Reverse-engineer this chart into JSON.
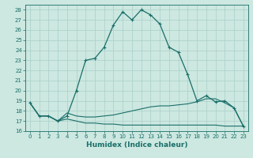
{
  "xlabel": "Humidex (Indice chaleur)",
  "bg_color": "#cce8e0",
  "grid_color": "#aacfc8",
  "line_color": "#1a6e6a",
  "xlim": [
    -0.5,
    23.5
  ],
  "ylim": [
    16,
    28.5
  ],
  "xticks": [
    0,
    1,
    2,
    3,
    4,
    5,
    6,
    7,
    8,
    9,
    10,
    11,
    12,
    13,
    14,
    15,
    16,
    17,
    18,
    19,
    20,
    21,
    22,
    23
  ],
  "yticks": [
    16,
    17,
    18,
    19,
    20,
    21,
    22,
    23,
    24,
    25,
    26,
    27,
    28
  ],
  "line1_x": [
    0,
    1,
    2,
    3,
    4,
    5,
    6,
    7,
    8,
    9,
    10,
    11,
    12,
    13,
    14,
    15,
    16,
    17,
    18,
    19,
    20,
    21,
    22,
    23
  ],
  "line1_y": [
    18.8,
    17.5,
    17.5,
    17.0,
    17.5,
    20.0,
    23.0,
    23.2,
    24.3,
    26.5,
    27.8,
    27.0,
    28.0,
    27.5,
    26.6,
    24.3,
    23.8,
    21.6,
    19.0,
    19.5,
    18.9,
    19.0,
    18.3,
    16.5
  ],
  "line2_x": [
    0,
    1,
    2,
    3,
    4,
    5,
    6,
    7,
    8,
    9,
    10,
    11,
    12,
    13,
    14,
    15,
    16,
    17,
    18,
    19,
    20,
    21,
    22,
    23
  ],
  "line2_y": [
    18.8,
    17.5,
    17.5,
    17.0,
    17.8,
    17.5,
    17.4,
    17.4,
    17.5,
    17.6,
    17.8,
    18.0,
    18.2,
    18.4,
    18.5,
    18.5,
    18.6,
    18.7,
    18.9,
    19.2,
    19.2,
    18.8,
    18.3,
    16.5
  ],
  "line3_x": [
    0,
    1,
    2,
    3,
    4,
    5,
    6,
    7,
    8,
    9,
    10,
    11,
    12,
    13,
    14,
    15,
    16,
    17,
    18,
    19,
    20,
    21,
    22,
    23
  ],
  "line3_y": [
    18.8,
    17.5,
    17.5,
    17.0,
    17.2,
    17.0,
    16.8,
    16.8,
    16.7,
    16.7,
    16.6,
    16.6,
    16.6,
    16.6,
    16.6,
    16.6,
    16.6,
    16.6,
    16.6,
    16.6,
    16.6,
    16.5,
    16.5,
    16.5
  ],
  "xlabel_fontsize": 6.5,
  "tick_fontsize": 5.0
}
